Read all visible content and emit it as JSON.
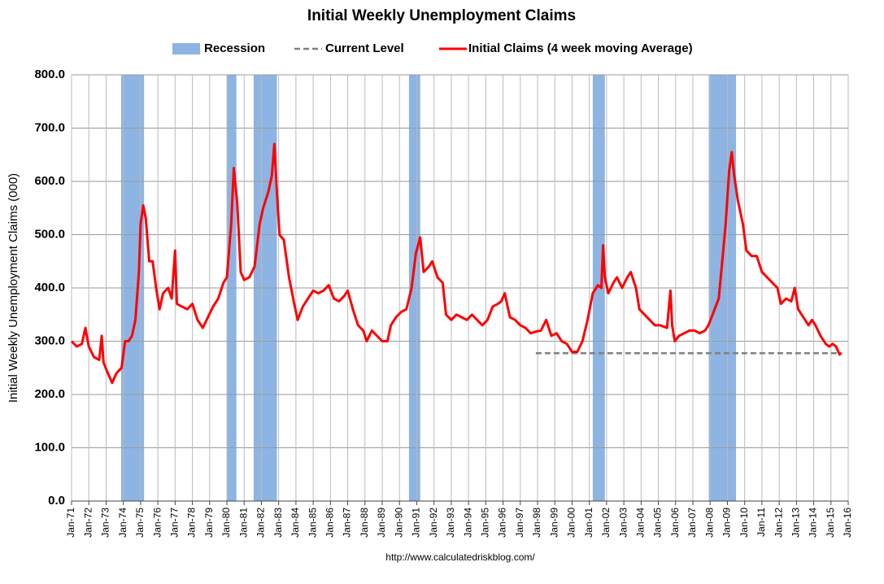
{
  "chart_data": {
    "type": "line",
    "title": "Initial Weekly Unemployment Claims",
    "y_label": "Initial Weekly Unemployment Claims (000)",
    "source": "http://www.calculatedriskblog.com/",
    "xlim": [
      1971,
      2016
    ],
    "ylim": [
      0,
      800
    ],
    "grid": true,
    "legend": "top",
    "yticks": [
      {
        "value": 0,
        "label": "0.0"
      },
      {
        "value": 100,
        "label": "100.0"
      },
      {
        "value": 200,
        "label": "200.0"
      },
      {
        "value": 300,
        "label": "300.0"
      },
      {
        "value": 400,
        "label": "400.0"
      },
      {
        "value": 500,
        "label": "500.0"
      },
      {
        "value": 600,
        "label": "600.0"
      },
      {
        "value": 700,
        "label": "700.0"
      },
      {
        "value": 800,
        "label": "800.0"
      }
    ],
    "xticks": [
      {
        "value": 1971,
        "label": "Jan-71"
      },
      {
        "value": 1972,
        "label": "Jan-72"
      },
      {
        "value": 1973,
        "label": "Jan-73"
      },
      {
        "value": 1974,
        "label": "Jan-74"
      },
      {
        "value": 1975,
        "label": "Jan-75"
      },
      {
        "value": 1976,
        "label": "Jan-76"
      },
      {
        "value": 1977,
        "label": "Jan-77"
      },
      {
        "value": 1978,
        "label": "Jan-78"
      },
      {
        "value": 1979,
        "label": "Jan-79"
      },
      {
        "value": 1980,
        "label": "Jan-80"
      },
      {
        "value": 1981,
        "label": "Jan-81"
      },
      {
        "value": 1982,
        "label": "Jan-82"
      },
      {
        "value": 1983,
        "label": "Jan-83"
      },
      {
        "value": 1984,
        "label": "Jan-84"
      },
      {
        "value": 1985,
        "label": "Jan-85"
      },
      {
        "value": 1986,
        "label": "Jan-86"
      },
      {
        "value": 1987,
        "label": "Jan-87"
      },
      {
        "value": 1988,
        "label": "Jan-88"
      },
      {
        "value": 1989,
        "label": "Jan-89"
      },
      {
        "value": 1990,
        "label": "Jan-90"
      },
      {
        "value": 1991,
        "label": "Jan-91"
      },
      {
        "value": 1992,
        "label": "Jan-92"
      },
      {
        "value": 1993,
        "label": "Jan-93"
      },
      {
        "value": 1994,
        "label": "Jan-94"
      },
      {
        "value": 1995,
        "label": "Jan-95"
      },
      {
        "value": 1996,
        "label": "Jan-96"
      },
      {
        "value": 1997,
        "label": "Jan-97"
      },
      {
        "value": 1998,
        "label": "Jan-98"
      },
      {
        "value": 1999,
        "label": "Jan-99"
      },
      {
        "value": 2000,
        "label": "Jan-00"
      },
      {
        "value": 2001,
        "label": "Jan-01"
      },
      {
        "value": 2002,
        "label": "Jan-02"
      },
      {
        "value": 2003,
        "label": "Jan-03"
      },
      {
        "value": 2004,
        "label": "Jan-04"
      },
      {
        "value": 2005,
        "label": "Jan-05"
      },
      {
        "value": 2006,
        "label": "Jan-06"
      },
      {
        "value": 2007,
        "label": "Jan-07"
      },
      {
        "value": 2008,
        "label": "Jan-08"
      },
      {
        "value": 2009,
        "label": "Jan-09"
      },
      {
        "value": 2010,
        "label": "Jan-10"
      },
      {
        "value": 2011,
        "label": "Jan-11"
      },
      {
        "value": 2012,
        "label": "Jan-12"
      },
      {
        "value": 2013,
        "label": "Jan-13"
      },
      {
        "value": 2014,
        "label": "Jan-14"
      },
      {
        "value": 2015,
        "label": "Jan-15"
      },
      {
        "value": 2016,
        "label": "Jan-16"
      }
    ],
    "recessions": {
      "name": "Recession",
      "color": "#8db4e2",
      "periods": [
        [
          1973.87,
          1975.2
        ],
        [
          1980.0,
          1980.55
        ],
        [
          1981.55,
          1982.9
        ],
        [
          1990.55,
          1991.2
        ],
        [
          2001.2,
          2001.9
        ],
        [
          2007.92,
          2009.5
        ]
      ]
    },
    "reference_line": {
      "name": "Current Level",
      "color": "#808080",
      "value": 277.5,
      "x": [
        1997.9,
        2015.6
      ]
    },
    "x": [
      1971.0,
      1971.3,
      1971.6,
      1971.8,
      1972.0,
      1972.3,
      1972.6,
      1972.75,
      1972.85,
      1973.1,
      1973.35,
      1973.6,
      1973.9,
      1974.1,
      1974.3,
      1974.5,
      1974.7,
      1974.9,
      1975.0,
      1975.15,
      1975.3,
      1975.5,
      1975.7,
      1975.9,
      1976.1,
      1976.3,
      1976.6,
      1976.8,
      1977.0,
      1977.1,
      1977.4,
      1977.7,
      1978.0,
      1978.3,
      1978.6,
      1978.9,
      1979.2,
      1979.5,
      1979.8,
      1980.0,
      1980.25,
      1980.4,
      1980.6,
      1980.8,
      1981.0,
      1981.3,
      1981.6,
      1981.9,
      1982.1,
      1982.4,
      1982.6,
      1982.75,
      1982.9,
      1983.05,
      1983.3,
      1983.6,
      1983.9,
      1984.1,
      1984.4,
      1984.7,
      1985.0,
      1985.3,
      1985.6,
      1985.9,
      1986.2,
      1986.5,
      1986.8,
      1987.0,
      1987.3,
      1987.6,
      1987.9,
      1988.1,
      1988.4,
      1988.7,
      1989.0,
      1989.3,
      1989.5,
      1989.8,
      1990.1,
      1990.4,
      1990.7,
      1990.95,
      1991.2,
      1991.4,
      1991.7,
      1991.9,
      1992.2,
      1992.5,
      1992.7,
      1993.0,
      1993.3,
      1993.6,
      1993.9,
      1994.2,
      1994.5,
      1994.8,
      1995.1,
      1995.4,
      1995.7,
      1995.9,
      1996.1,
      1996.4,
      1996.7,
      1997.0,
      1997.3,
      1997.6,
      1997.9,
      1998.2,
      1998.5,
      1998.8,
      1999.1,
      1999.4,
      1999.7,
      2000.0,
      2000.3,
      2000.6,
      2000.9,
      2001.2,
      2001.5,
      2001.7,
      2001.8,
      2001.9,
      2002.1,
      2002.4,
      2002.6,
      2002.9,
      2003.2,
      2003.4,
      2003.7,
      2003.9,
      2004.2,
      2004.5,
      2004.8,
      2005.1,
      2005.5,
      2005.7,
      2005.8,
      2005.95,
      2006.2,
      2006.5,
      2006.8,
      2007.1,
      2007.4,
      2007.7,
      2007.9,
      2008.2,
      2008.5,
      2008.7,
      2008.9,
      2009.1,
      2009.25,
      2009.4,
      2009.6,
      2009.9,
      2010.1,
      2010.4,
      2010.7,
      2011.0,
      2011.3,
      2011.6,
      2011.9,
      2012.1,
      2012.4,
      2012.7,
      2012.9,
      2013.1,
      2013.4,
      2013.7,
      2013.9,
      2014.1,
      2014.4,
      2014.7,
      2014.9,
      2015.1,
      2015.3,
      2015.5,
      2015.6
    ],
    "series": [
      {
        "name": "Initial Claims (4 week moving Average)",
        "color": "#ff0000",
        "values": [
          300,
          290,
          295,
          325,
          290,
          270,
          265,
          310,
          260,
          240,
          222,
          240,
          250,
          300,
          300,
          310,
          340,
          430,
          520,
          555,
          530,
          450,
          450,
          400,
          360,
          390,
          400,
          380,
          470,
          370,
          365,
          360,
          370,
          340,
          325,
          345,
          365,
          380,
          410,
          420,
          520,
          625,
          560,
          430,
          415,
          420,
          440,
          520,
          550,
          580,
          610,
          670,
          580,
          500,
          490,
          420,
          370,
          340,
          365,
          380,
          395,
          390,
          395,
          405,
          380,
          375,
          385,
          395,
          360,
          330,
          320,
          300,
          320,
          310,
          300,
          300,
          330,
          345,
          355,
          360,
          400,
          465,
          495,
          430,
          440,
          450,
          420,
          410,
          350,
          340,
          350,
          345,
          340,
          350,
          340,
          330,
          340,
          365,
          370,
          375,
          390,
          345,
          340,
          330,
          325,
          315,
          318,
          320,
          340,
          310,
          315,
          300,
          295,
          280,
          280,
          300,
          340,
          390,
          405,
          400,
          480,
          420,
          390,
          410,
          420,
          400,
          420,
          430,
          400,
          360,
          350,
          340,
          330,
          330,
          325,
          395,
          330,
          300,
          310,
          315,
          320,
          320,
          315,
          320,
          330,
          355,
          380,
          450,
          520,
          620,
          655,
          610,
          565,
          520,
          470,
          460,
          460,
          430,
          420,
          410,
          400,
          370,
          380,
          375,
          400,
          360,
          345,
          330,
          340,
          330,
          310,
          295,
          290,
          295,
          290,
          275,
          278
        ]
      }
    ]
  }
}
